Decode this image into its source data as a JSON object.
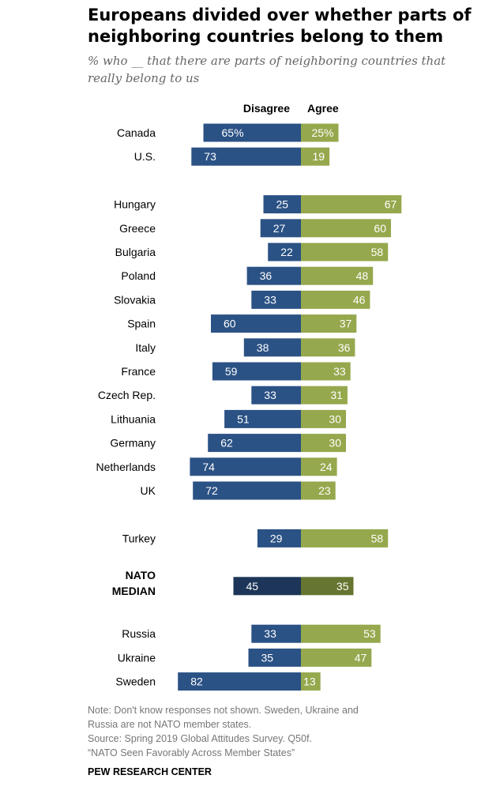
{
  "title": "Europeans divided over whether parts of neighboring countries belong to them",
  "subtitle": "% who __ that there are parts of neighboring countries that really belong to us",
  "notes": {
    "note_line1": "Note: Don't know responses not shown. Sweden, Ukraine and",
    "note_line2": "Russia are not NATO member states.",
    "source_line1": "Source: Spring 2019 Global Attitudes Survey. Q50f.",
    "source_line2": "“NATO Seen Favorably Across Member States”"
  },
  "credit": "PEW RESEARCH CENTER",
  "colors": {
    "disagree": "#2b5285",
    "agree": "#95a84d",
    "disagree_median": "#1c3558",
    "agree_median": "#66752f"
  },
  "chart_data": {
    "type": "bar",
    "orientation": "diverging-horizontal",
    "series": [
      {
        "name": "Disagree",
        "values": [
          65,
          73,
          25,
          27,
          22,
          36,
          33,
          60,
          38,
          59,
          33,
          51,
          62,
          74,
          72,
          29,
          45,
          33,
          35,
          82
        ]
      },
      {
        "name": "Agree",
        "values": [
          25,
          19,
          67,
          60,
          58,
          48,
          46,
          37,
          36,
          33,
          31,
          30,
          30,
          24,
          23,
          58,
          35,
          53,
          47,
          13
        ]
      }
    ],
    "categories": [
      "Canada",
      "U.S.",
      "Hungary",
      "Greece",
      "Bulgaria",
      "Poland",
      "Slovakia",
      "Spain",
      "Italy",
      "France",
      "Czech Rep.",
      "Lithuania",
      "Germany",
      "Netherlands",
      "UK",
      "Turkey",
      "NATO MEDIAN",
      "Russia",
      "Ukraine",
      "Sweden"
    ],
    "groups": [
      [
        "Canada",
        "U.S."
      ],
      [
        "Hungary",
        "Greece",
        "Bulgaria",
        "Poland",
        "Slovakia",
        "Spain",
        "Italy",
        "France",
        "Czech Rep.",
        "Lithuania",
        "Germany",
        "Netherlands",
        "UK"
      ],
      [
        "Turkey"
      ],
      [
        "NATO MEDIAN"
      ],
      [
        "Russia",
        "Ukraine",
        "Sweden"
      ]
    ],
    "value_labels_first_row": [
      "65%",
      "25%"
    ]
  }
}
